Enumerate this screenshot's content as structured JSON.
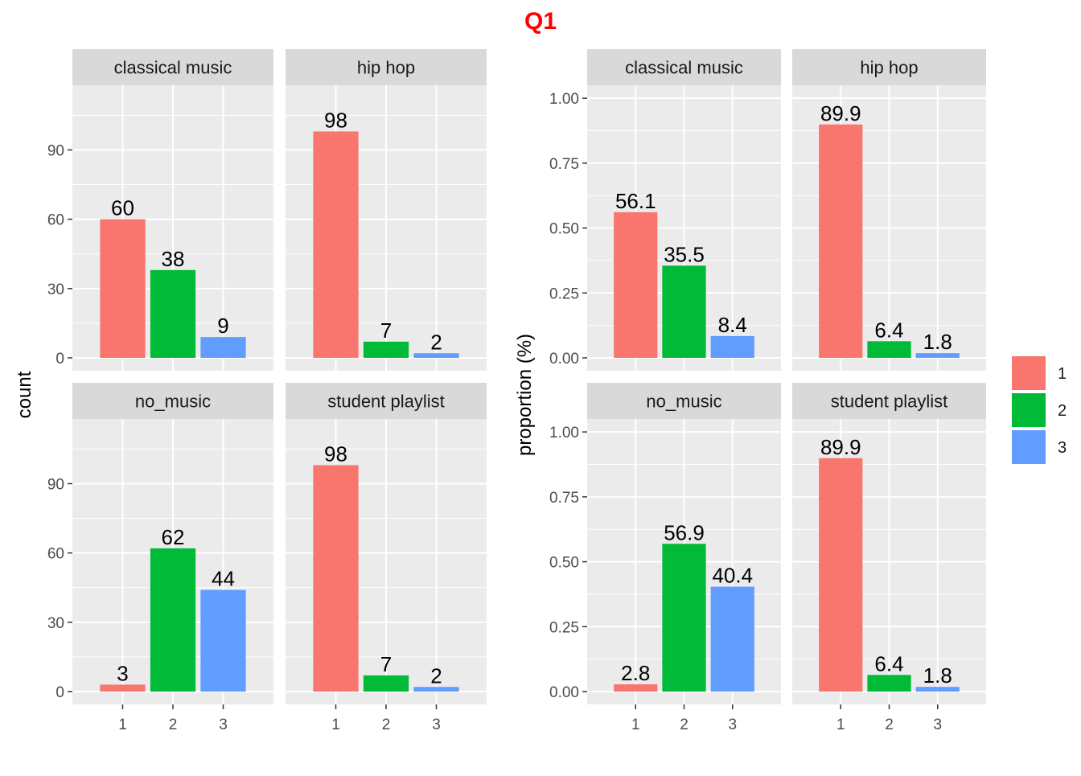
{
  "title": "Q1",
  "colors": {
    "title": "#ff0000",
    "panel_bg": "#ebebeb",
    "strip_bg": "#d9d9d9",
    "grid": "#ffffff",
    "series": [
      "#f8766d",
      "#00ba38",
      "#619cff"
    ]
  },
  "legend": {
    "position": "right",
    "items": [
      "1",
      "2",
      "3"
    ]
  },
  "chart_data": [
    {
      "type": "bar",
      "ylabel": "count",
      "xlabel": "",
      "ylim": [
        0,
        118
      ],
      "yticks": [
        0,
        30,
        60,
        90
      ],
      "ytick_labels": [
        "0",
        "30",
        "60",
        "90"
      ],
      "categories": [
        "1",
        "2",
        "3"
      ],
      "facets": [
        {
          "name": "classical music",
          "values": [
            60,
            38,
            9
          ],
          "labels": [
            "60",
            "38",
            "9"
          ]
        },
        {
          "name": "hip hop",
          "values": [
            98,
            7,
            2
          ],
          "labels": [
            "98",
            "7",
            "2"
          ]
        },
        {
          "name": "no_music",
          "values": [
            3,
            62,
            44
          ],
          "labels": [
            "3",
            "62",
            "44"
          ]
        },
        {
          "name": "student playlist",
          "values": [
            98,
            7,
            2
          ],
          "labels": [
            "98",
            "7",
            "2"
          ]
        }
      ]
    },
    {
      "type": "bar",
      "ylabel": "proportion (%)",
      "xlabel": "",
      "ylim": [
        0,
        1.05
      ],
      "yticks": [
        0,
        0.25,
        0.5,
        0.75,
        1.0
      ],
      "ytick_labels": [
        "0.00",
        "0.25",
        "0.50",
        "0.75",
        "1.00"
      ],
      "categories": [
        "1",
        "2",
        "3"
      ],
      "facets": [
        {
          "name": "classical music",
          "values": [
            0.561,
            0.355,
            0.084
          ],
          "labels": [
            "56.1",
            "35.5",
            "8.4"
          ]
        },
        {
          "name": "hip hop",
          "values": [
            0.899,
            0.064,
            0.018
          ],
          "labels": [
            "89.9",
            "6.4",
            "1.8"
          ]
        },
        {
          "name": "no_music",
          "values": [
            0.028,
            0.569,
            0.404
          ],
          "labels": [
            "2.8",
            "56.9",
            "40.4"
          ]
        },
        {
          "name": "student playlist",
          "values": [
            0.899,
            0.064,
            0.018
          ],
          "labels": [
            "89.9",
            "6.4",
            "1.8"
          ]
        }
      ]
    }
  ]
}
